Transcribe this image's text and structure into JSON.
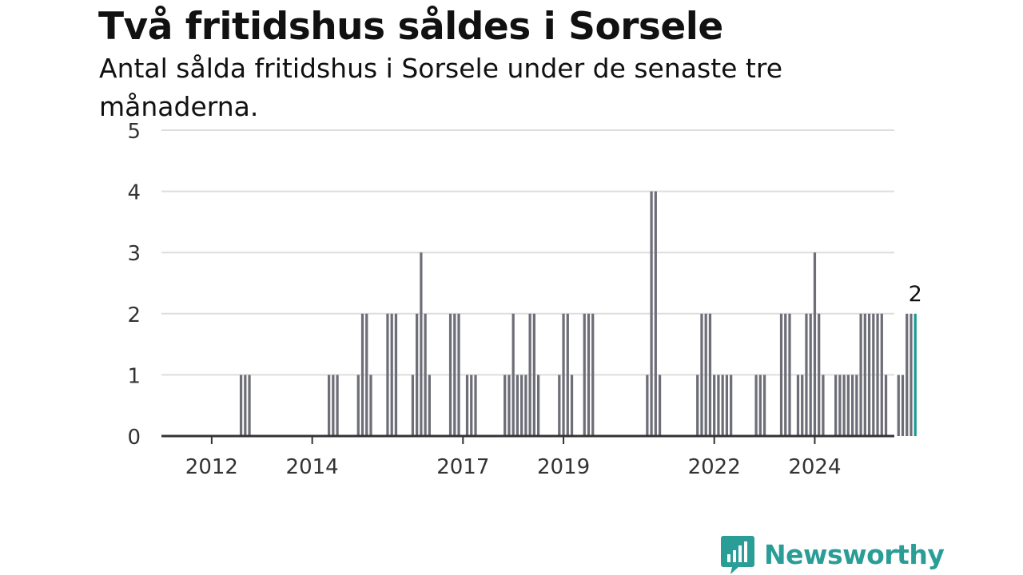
{
  "title": "Två fritidshus såldes i Sorsele",
  "subtitle": "Antal sålda fritidshus i Sorsele under de senaste tre månaderna.",
  "brand": {
    "name": "Newsworthy",
    "color": "#2a9d97",
    "icon": "bar-chart-speech-bubble-icon"
  },
  "colors": {
    "bar": "#6e6e78",
    "highlight": "#1a9a92",
    "grid": "#dddddd",
    "axis": "#333333"
  },
  "chart_data": {
    "type": "bar",
    "title": "Två fritidshus såldes i Sorsele",
    "subtitle": "Antal sålda fritidshus i Sorsele under de senaste tre månaderna.",
    "xlabel": "",
    "ylabel": "",
    "frequency": "monthly (rolling three-month totals)",
    "x_range": [
      "2011-01",
      "2025-08"
    ],
    "ylim": [
      0,
      5
    ],
    "yticks": [
      0,
      1,
      2,
      3,
      4,
      5
    ],
    "xticks": [
      {
        "date": "2012-01",
        "label": "2012"
      },
      {
        "date": "2014-01",
        "label": "2014"
      },
      {
        "date": "2017-01",
        "label": "2017"
      },
      {
        "date": "2019-01",
        "label": "2019"
      },
      {
        "date": "2022-01",
        "label": "2022"
      },
      {
        "date": "2024-01",
        "label": "2024"
      }
    ],
    "grid": true,
    "legend": "none",
    "last_value_label": "2",
    "bars": [
      {
        "date": "2012-08",
        "value": 1
      },
      {
        "date": "2012-09",
        "value": 1
      },
      {
        "date": "2012-10",
        "value": 1
      },
      {
        "date": "2014-05",
        "value": 1
      },
      {
        "date": "2014-06",
        "value": 1
      },
      {
        "date": "2014-07",
        "value": 1
      },
      {
        "date": "2014-12",
        "value": 1
      },
      {
        "date": "2015-01",
        "value": 2
      },
      {
        "date": "2015-02",
        "value": 2
      },
      {
        "date": "2015-03",
        "value": 1
      },
      {
        "date": "2015-07",
        "value": 2
      },
      {
        "date": "2015-08",
        "value": 2
      },
      {
        "date": "2015-09",
        "value": 2
      },
      {
        "date": "2016-01",
        "value": 1
      },
      {
        "date": "2016-02",
        "value": 2
      },
      {
        "date": "2016-03",
        "value": 3
      },
      {
        "date": "2016-04",
        "value": 2
      },
      {
        "date": "2016-05",
        "value": 1
      },
      {
        "date": "2016-10",
        "value": 2
      },
      {
        "date": "2016-11",
        "value": 2
      },
      {
        "date": "2016-12",
        "value": 2
      },
      {
        "date": "2017-02",
        "value": 1
      },
      {
        "date": "2017-03",
        "value": 1
      },
      {
        "date": "2017-04",
        "value": 1
      },
      {
        "date": "2017-11",
        "value": 1
      },
      {
        "date": "2017-12",
        "value": 1
      },
      {
        "date": "2018-01",
        "value": 2
      },
      {
        "date": "2018-02",
        "value": 1
      },
      {
        "date": "2018-03",
        "value": 1
      },
      {
        "date": "2018-04",
        "value": 1
      },
      {
        "date": "2018-05",
        "value": 2
      },
      {
        "date": "2018-06",
        "value": 2
      },
      {
        "date": "2018-07",
        "value": 1
      },
      {
        "date": "2018-12",
        "value": 1
      },
      {
        "date": "2019-01",
        "value": 2
      },
      {
        "date": "2019-02",
        "value": 2
      },
      {
        "date": "2019-03",
        "value": 1
      },
      {
        "date": "2019-06",
        "value": 2
      },
      {
        "date": "2019-07",
        "value": 2
      },
      {
        "date": "2019-08",
        "value": 2
      },
      {
        "date": "2020-09",
        "value": 1
      },
      {
        "date": "2020-10",
        "value": 4
      },
      {
        "date": "2020-11",
        "value": 4
      },
      {
        "date": "2020-12",
        "value": 1
      },
      {
        "date": "2021-09",
        "value": 1
      },
      {
        "date": "2021-10",
        "value": 2
      },
      {
        "date": "2021-11",
        "value": 2
      },
      {
        "date": "2021-12",
        "value": 2
      },
      {
        "date": "2022-01",
        "value": 1
      },
      {
        "date": "2022-02",
        "value": 1
      },
      {
        "date": "2022-03",
        "value": 1
      },
      {
        "date": "2022-04",
        "value": 1
      },
      {
        "date": "2022-05",
        "value": 1
      },
      {
        "date": "2022-11",
        "value": 1
      },
      {
        "date": "2022-12",
        "value": 1
      },
      {
        "date": "2023-01",
        "value": 1
      },
      {
        "date": "2023-05",
        "value": 2
      },
      {
        "date": "2023-06",
        "value": 2
      },
      {
        "date": "2023-07",
        "value": 2
      },
      {
        "date": "2023-09",
        "value": 1
      },
      {
        "date": "2023-10",
        "value": 1
      },
      {
        "date": "2023-11",
        "value": 2
      },
      {
        "date": "2023-12",
        "value": 2
      },
      {
        "date": "2024-01",
        "value": 3
      },
      {
        "date": "2024-02",
        "value": 2
      },
      {
        "date": "2024-03",
        "value": 1
      },
      {
        "date": "2024-06",
        "value": 1
      },
      {
        "date": "2024-07",
        "value": 1
      },
      {
        "date": "2024-08",
        "value": 1
      },
      {
        "date": "2024-09",
        "value": 1
      },
      {
        "date": "2024-10",
        "value": 1
      },
      {
        "date": "2024-11",
        "value": 1
      },
      {
        "date": "2024-12",
        "value": 2
      },
      {
        "date": "2025-01",
        "value": 2
      },
      {
        "date": "2025-02",
        "value": 2
      },
      {
        "date": "2025-03",
        "value": 2
      },
      {
        "date": "2025-04",
        "value": 2
      },
      {
        "date": "2025-05",
        "value": 2
      },
      {
        "date": "2025-06",
        "value": 1
      },
      {
        "date": "2025-09",
        "value": 1
      },
      {
        "date": "2025-10",
        "value": 1
      },
      {
        "date": "2025-11",
        "value": 2
      },
      {
        "date": "2025-12",
        "value": 2
      },
      {
        "date": "2026-01",
        "value": 2,
        "highlight": true
      }
    ]
  }
}
